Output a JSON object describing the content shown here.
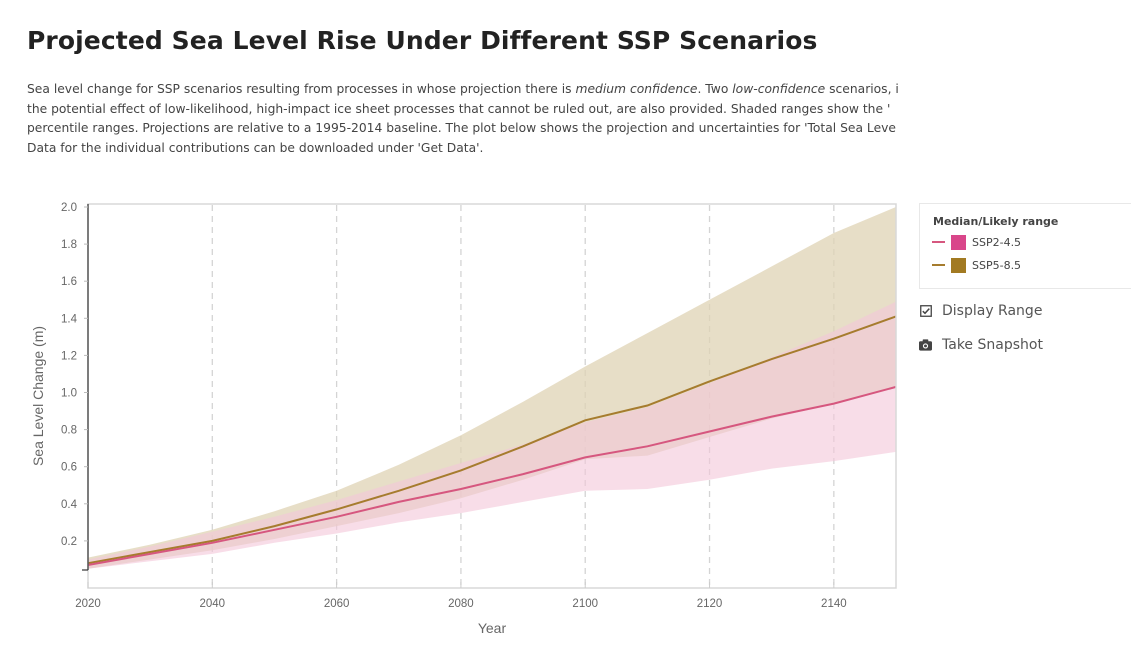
{
  "page": {
    "title": "Projected Sea Level Rise Under Different SSP Scenarios",
    "description": {
      "line1_a": "Sea level change for SSP scenarios resulting from processes in whose projection there is ",
      "line1_em1": "medium confidence",
      "line1_b": ". Two ",
      "line1_em2": "low-confidence",
      "line1_c": " scenarios, i",
      "line2": "the potential effect of low-likelihood, high-impact ice sheet processes that cannot be ruled out, are also provided. Shaded ranges show the '",
      "line3": "percentile ranges. Projections are relative to a 1995-2014 baseline. The plot below shows the projection and uncertainties for 'Total Sea Leve",
      "line4": "Data for the individual contributions can be downloaded under 'Get Data'."
    }
  },
  "legend": {
    "title": "Median/Likely range",
    "items": [
      {
        "label": "SSP2-4.5",
        "line_color": "#d6577f",
        "swatch_color": "#d9468a"
      },
      {
        "label": "SSP5-8.5",
        "line_color": "#a67c2e",
        "swatch_color": "#a27a22"
      }
    ]
  },
  "controls": {
    "display_range_label": "Display Range",
    "display_range_checked": true,
    "snapshot_label": "Take Snapshot"
  },
  "chart_data": {
    "type": "area",
    "title": "",
    "xlabel": "Year",
    "ylabel": "Sea Level Change (m)",
    "xlim": [
      2020,
      2150
    ],
    "ylim": [
      0,
      2.0
    ],
    "xticks": [
      2020,
      2040,
      2060,
      2080,
      2100,
      2120,
      2140
    ],
    "yticks": [
      0.2,
      0.4,
      0.6,
      0.8,
      1.0,
      1.2,
      1.4,
      1.6,
      1.8,
      2.0
    ],
    "ytick_labels": [
      "0.2",
      "0.4",
      "0.6",
      "0.8",
      "1.0",
      "1.2",
      "1.4",
      "1.6",
      "1.8",
      "2.0"
    ],
    "grid": "vertical-dashed",
    "legend_position": "right",
    "x": [
      2020,
      2030,
      2040,
      2050,
      2060,
      2070,
      2080,
      2090,
      2100,
      2110,
      2120,
      2130,
      2140,
      2150
    ],
    "series": [
      {
        "name": "SSP5-8.5",
        "color": "#a67c2e",
        "fill": "#dfd3b4",
        "median": [
          0.08,
          0.14,
          0.2,
          0.28,
          0.37,
          0.47,
          0.58,
          0.71,
          0.85,
          0.93,
          1.06,
          1.18,
          1.29,
          1.41
        ],
        "lower": [
          0.05,
          0.1,
          0.15,
          0.21,
          0.28,
          0.35,
          0.43,
          0.53,
          0.64,
          0.66,
          0.76,
          0.86,
          0.94,
          1.03
        ],
        "upper": [
          0.11,
          0.18,
          0.26,
          0.36,
          0.47,
          0.61,
          0.77,
          0.95,
          1.14,
          1.32,
          1.5,
          1.68,
          1.86,
          2.0
        ]
      },
      {
        "name": "SSP2-4.5",
        "color": "#d6577f",
        "fill": "#f3c6d8",
        "median": [
          0.07,
          0.13,
          0.19,
          0.26,
          0.33,
          0.41,
          0.48,
          0.56,
          0.65,
          0.71,
          0.79,
          0.87,
          0.94,
          1.03
        ],
        "lower": [
          0.05,
          0.09,
          0.13,
          0.19,
          0.24,
          0.3,
          0.35,
          0.41,
          0.47,
          0.48,
          0.53,
          0.59,
          0.63,
          0.68
        ],
        "upper": [
          0.1,
          0.17,
          0.25,
          0.33,
          0.42,
          0.52,
          0.62,
          0.72,
          0.84,
          0.92,
          1.05,
          1.19,
          1.33,
          1.49
        ]
      }
    ]
  }
}
